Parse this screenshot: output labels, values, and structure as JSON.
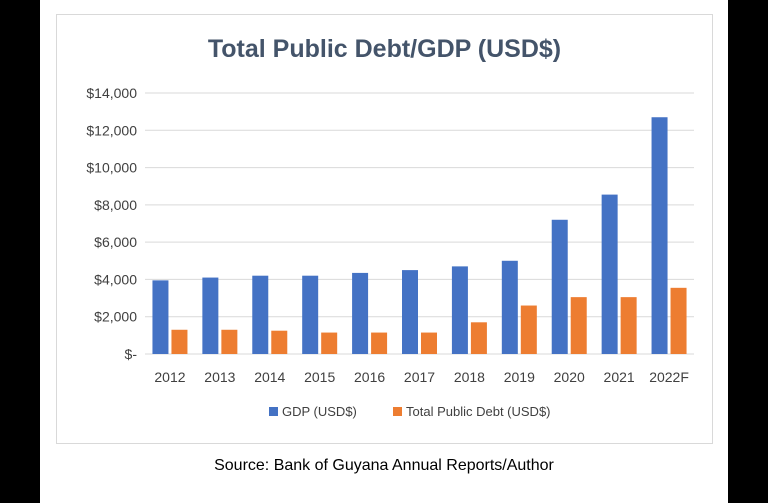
{
  "chart_data": {
    "type": "bar",
    "title": "Total Public Debt/GDP (USD$)",
    "categories": [
      "2012",
      "2013",
      "2014",
      "2015",
      "2016",
      "2017",
      "2018",
      "2019",
      "2020",
      "2021",
      "2022F"
    ],
    "series": [
      {
        "name": "GDP (USD$)",
        "color": "#4472c4",
        "values": [
          3950,
          4100,
          4200,
          4200,
          4350,
          4500,
          4700,
          5000,
          7200,
          8550,
          12700
        ]
      },
      {
        "name": "Total Public Debt (USD$)",
        "color": "#ed7d31",
        "values": [
          1300,
          1300,
          1250,
          1150,
          1150,
          1150,
          1700,
          2600,
          3050,
          3050,
          3550
        ]
      }
    ],
    "ylim": [
      0,
      14000
    ],
    "yticks": [
      0,
      2000,
      4000,
      6000,
      8000,
      10000,
      12000,
      14000
    ],
    "ytick_labels": [
      "$-",
      "$2,000",
      "$4,000",
      "$6,000",
      "$8,000",
      "$10,000",
      "$12,000",
      "$14,000"
    ],
    "grid": true,
    "legend_position": "bottom",
    "xlabel": "",
    "ylabel": ""
  },
  "source_note": "Source: Bank of Guyana Annual Reports/Author"
}
